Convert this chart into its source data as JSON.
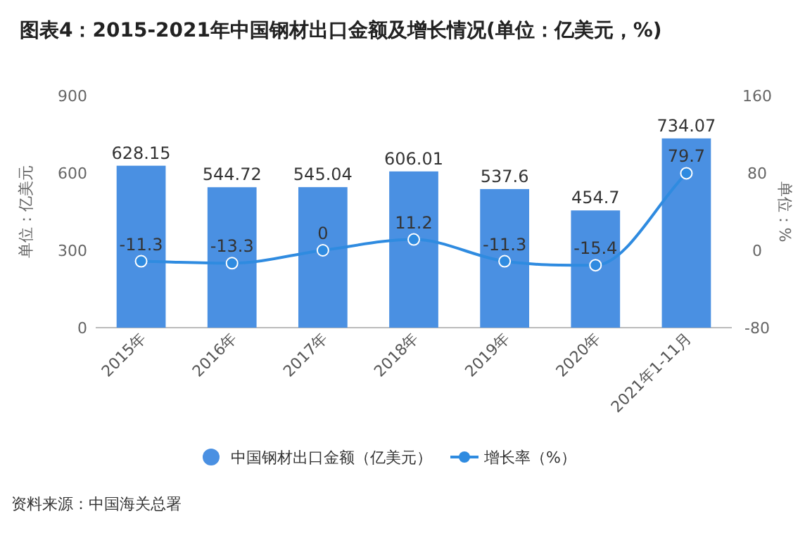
{
  "chart_data": {
    "type": "bar",
    "title": "图表4：2015-2021年中国钢材出口金额及增长情况(单位：亿美元，%)",
    "categories": [
      "2015年",
      "2016年",
      "2017年",
      "2018年",
      "2019年",
      "2020年",
      "2021年1-11月"
    ],
    "series": [
      {
        "name": "中国钢材出口金额（亿美元）",
        "color": "#4a90e2",
        "values": [
          628.15,
          544.72,
          545.04,
          606.01,
          537.6,
          454.7,
          734.07
        ]
      },
      {
        "name": "增长率（%）",
        "type": "line",
        "axis": "y2",
        "color": "#2f8be0",
        "marker": "circle",
        "values": [
          -11.3,
          -13.3,
          0,
          11.2,
          -11.3,
          -15.4,
          79.7
        ]
      }
    ],
    "ylabel": "单位：亿美元",
    "y2label": "单位：%",
    "ylim": [
      0,
      900
    ],
    "yticks": [
      0,
      300,
      600,
      900
    ],
    "y2lim": [
      -80,
      160
    ],
    "y2ticks": [
      -80,
      0,
      80,
      160
    ],
    "data_labels": true,
    "legend": "bottom",
    "annotations": [
      "资料来源：中国海关总署"
    ]
  }
}
